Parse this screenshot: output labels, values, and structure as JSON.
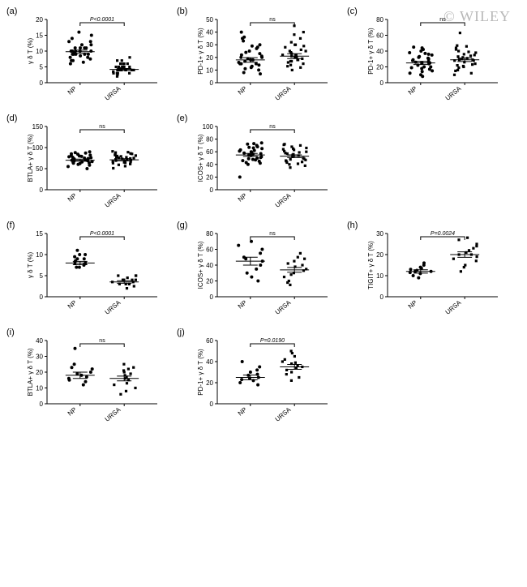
{
  "watermark": "© WILEY",
  "panel_label_font": 11,
  "axis_font": 8,
  "marker_circle_r": 2,
  "marker_square_s": 3.2,
  "colors": {
    "axis": "#000000",
    "marker": "#000000",
    "error": "#000000",
    "sig": "#000000",
    "bg": "#ffffff",
    "watermark": "#b8b8b8"
  },
  "x_categories": {
    "np": "NP",
    "ursa": "URSA"
  },
  "panels": {
    "a": {
      "label": "(a)",
      "ylabel": "γ δ T (%)",
      "sig_text": "P<0.0001",
      "sig_style": "italic",
      "ylim": [
        0,
        20
      ],
      "yticks": [
        0,
        5,
        10,
        15,
        20
      ],
      "np": [
        9,
        10,
        11,
        12,
        9.5,
        8,
        7,
        6,
        10,
        11,
        13,
        14,
        9,
        8.5,
        10,
        9,
        7.5,
        12,
        11,
        9,
        8,
        10,
        9,
        6.5,
        7,
        15,
        16,
        13,
        10,
        11
      ],
      "ursa": [
        4,
        5,
        3,
        6,
        4,
        5,
        3.5,
        4.5,
        5,
        6,
        7,
        3,
        2.5,
        4,
        5,
        6,
        3,
        4,
        5,
        4,
        6,
        7,
        8,
        5,
        3,
        4,
        5,
        4,
        3,
        2
      ],
      "np_mean": 9.8,
      "np_sem": 0.5,
      "ursa_mean": 4.2,
      "ursa_sem": 0.3
    },
    "b": {
      "label": "(b)",
      "ylabel": "PD-1+ γ δ T (%)",
      "sig_text": "ns",
      "sig_style": "normal",
      "ylim": [
        0,
        50
      ],
      "yticks": [
        0,
        10,
        20,
        30,
        40,
        50
      ],
      "np": [
        18,
        20,
        15,
        25,
        30,
        12,
        10,
        22,
        28,
        35,
        40,
        17,
        14,
        11,
        19,
        24,
        16,
        13,
        21,
        27,
        33,
        8,
        7,
        15,
        18,
        23,
        29,
        36,
        20,
        15
      ],
      "ursa": [
        20,
        22,
        18,
        25,
        30,
        15,
        12,
        24,
        28,
        32,
        38,
        19,
        16,
        14,
        21,
        26,
        17,
        13,
        23,
        29,
        35,
        45,
        10,
        17,
        20,
        25,
        30,
        40,
        22,
        18
      ],
      "np_mean": 18,
      "np_sem": 1.8,
      "ursa_mean": 21,
      "ursa_sem": 1.9
    },
    "c": {
      "label": "(c)",
      "ylabel": "PD-1+ γ δ T (%)",
      "sig_text": "ns",
      "sig_style": "normal",
      "ylim": [
        0,
        80
      ],
      "yticks": [
        0,
        20,
        40,
        60,
        80
      ],
      "np": [
        25,
        30,
        20,
        35,
        40,
        15,
        18,
        28,
        32,
        38,
        45,
        22,
        17,
        12,
        26,
        33,
        19,
        14,
        29,
        36,
        42,
        10,
        8,
        24,
        27,
        31,
        37,
        44,
        20,
        25
      ],
      "ursa": [
        28,
        32,
        22,
        36,
        42,
        63,
        20,
        30,
        34,
        40,
        46,
        24,
        19,
        15,
        29,
        35,
        21,
        16,
        31,
        38,
        44,
        12,
        10,
        26,
        29,
        33,
        39,
        47,
        23,
        28
      ],
      "np_mean": 25,
      "np_sem": 2,
      "ursa_mean": 29,
      "ursa_sem": 2.2
    },
    "d": {
      "label": "(d)",
      "ylabel": "BTLA+ γ δ T (%)",
      "sig_text": "ns",
      "sig_style": "normal",
      "ylim": [
        0,
        150
      ],
      "yticks": [
        0,
        50,
        100,
        150
      ],
      "np": [
        70,
        75,
        65,
        80,
        85,
        60,
        68,
        72,
        78,
        82,
        88,
        62,
        58,
        74,
        77,
        66,
        63,
        79,
        84,
        90,
        55,
        50,
        73,
        76,
        81,
        87,
        69,
        64,
        71,
        67
      ],
      "ursa": [
        72,
        76,
        66,
        81,
        86,
        61,
        69,
        73,
        79,
        83,
        89,
        63,
        59,
        75,
        78,
        67,
        64,
        80,
        85,
        91,
        56,
        51,
        74,
        77,
        82,
        88,
        70,
        65,
        72,
        68
      ],
      "np_mean": 70,
      "np_sem": 2.5,
      "ursa_mean": 71,
      "ursa_sem": 2.5
    },
    "e": {
      "label": "(e)",
      "ylabel": "ICOS+ γ δ T (%)",
      "sig_text": "ns",
      "sig_style": "normal",
      "ylim": [
        0,
        100
      ],
      "yticks": [
        0,
        20,
        40,
        60,
        80,
        100
      ],
      "np": [
        55,
        60,
        50,
        65,
        70,
        45,
        52,
        58,
        62,
        68,
        72,
        48,
        42,
        56,
        63,
        47,
        43,
        59,
        66,
        74,
        40,
        20,
        57,
        61,
        67,
        73,
        51,
        46,
        54,
        49
      ],
      "ursa": [
        53,
        58,
        48,
        63,
        68,
        43,
        50,
        56,
        60,
        66,
        70,
        46,
        40,
        54,
        61,
        45,
        41,
        57,
        64,
        72,
        38,
        35,
        55,
        59,
        65,
        71,
        49,
        44,
        52,
        47
      ],
      "np_mean": 55,
      "np_sem": 2.3,
      "ursa_mean": 53,
      "ursa_sem": 2.2
    },
    "f": {
      "label": "(f)",
      "ylabel": "γ δ T (%)",
      "sig_text": "P<0.0001",
      "sig_style": "italic",
      "ylim": [
        0,
        15
      ],
      "yticks": [
        0,
        5,
        10,
        15
      ],
      "np": [
        8,
        9,
        7,
        10,
        11,
        8.5,
        7.5,
        9.5,
        8,
        9,
        7,
        10
      ],
      "ursa": [
        3,
        4,
        2.5,
        5,
        3.5,
        4.5,
        3,
        4,
        2,
        3.5,
        4,
        5,
        3,
        4,
        5
      ],
      "np_mean": 8,
      "np_sem": 0.4,
      "ursa_mean": 3.5,
      "ursa_sem": 0.3
    },
    "g": {
      "label": "(g)",
      "ylabel": "ICOS+ γ δ T (%)",
      "sig_text": "ns",
      "sig_style": "normal",
      "ylim": [
        0,
        80
      ],
      "yticks": [
        0,
        20,
        40,
        60,
        80
      ],
      "np": [
        45,
        50,
        40,
        60,
        65,
        35,
        30,
        48,
        55,
        70,
        25,
        20
      ],
      "ursa": [
        35,
        40,
        30,
        45,
        50,
        25,
        20,
        38,
        42,
        55,
        48,
        28,
        15,
        18,
        33
      ],
      "np_mean": 45,
      "np_sem": 5,
      "ursa_mean": 34,
      "ursa_sem": 3
    },
    "h": {
      "label": "(h)",
      "ylabel": "TIGIT+ γ δ T (%)",
      "sig_text": "P=0.0024",
      "sig_style": "italic",
      "ylim": [
        0,
        30
      ],
      "yticks": [
        0,
        10,
        20,
        30
      ],
      "np": [
        12,
        13,
        11,
        14,
        15,
        10,
        11.5,
        12.5,
        13.5,
        9,
        16,
        12
      ],
      "ursa": [
        20,
        22,
        18,
        25,
        27,
        15,
        17,
        21,
        23,
        28,
        19,
        14,
        12,
        24,
        20
      ],
      "np_mean": 12,
      "np_sem": 0.8,
      "ursa_mean": 20,
      "ursa_sem": 1.3
    },
    "i": {
      "label": "(i)",
      "ylabel": "BTLA+ γ δ T (%)",
      "sig_text": "ns",
      "sig_style": "normal",
      "ylim": [
        0,
        40
      ],
      "yticks": [
        0,
        10,
        20,
        30,
        40
      ],
      "np": [
        18,
        20,
        15,
        22,
        25,
        12,
        17,
        19,
        23,
        35,
        14,
        16
      ],
      "ursa": [
        16,
        18,
        13,
        20,
        23,
        10,
        15,
        17,
        21,
        25,
        12,
        8,
        6,
        19,
        22
      ],
      "np_mean": 18,
      "np_sem": 2,
      "ursa_mean": 16,
      "ursa_sem": 1.5
    },
    "j": {
      "label": "(j)",
      "ylabel": "PD-1+ γ δ T (%)",
      "sig_text": "P=0.0190",
      "sig_style": "italic",
      "ylim": [
        0,
        60
      ],
      "yticks": [
        0,
        20,
        40,
        60
      ],
      "np": [
        25,
        28,
        22,
        30,
        35,
        20,
        24,
        27,
        32,
        40,
        18,
        23
      ],
      "ursa": [
        35,
        38,
        32,
        40,
        45,
        48,
        30,
        36,
        42,
        50,
        28,
        25,
        22,
        39,
        34
      ],
      "np_mean": 25,
      "np_sem": 2.2,
      "ursa_mean": 35,
      "ursa_sem": 2.3
    }
  },
  "layout": {
    "rows": [
      [
        "a",
        "b",
        "c"
      ],
      [
        "d",
        "e"
      ],
      [
        "f",
        "g",
        "h"
      ],
      [
        "i",
        "j"
      ]
    ]
  }
}
